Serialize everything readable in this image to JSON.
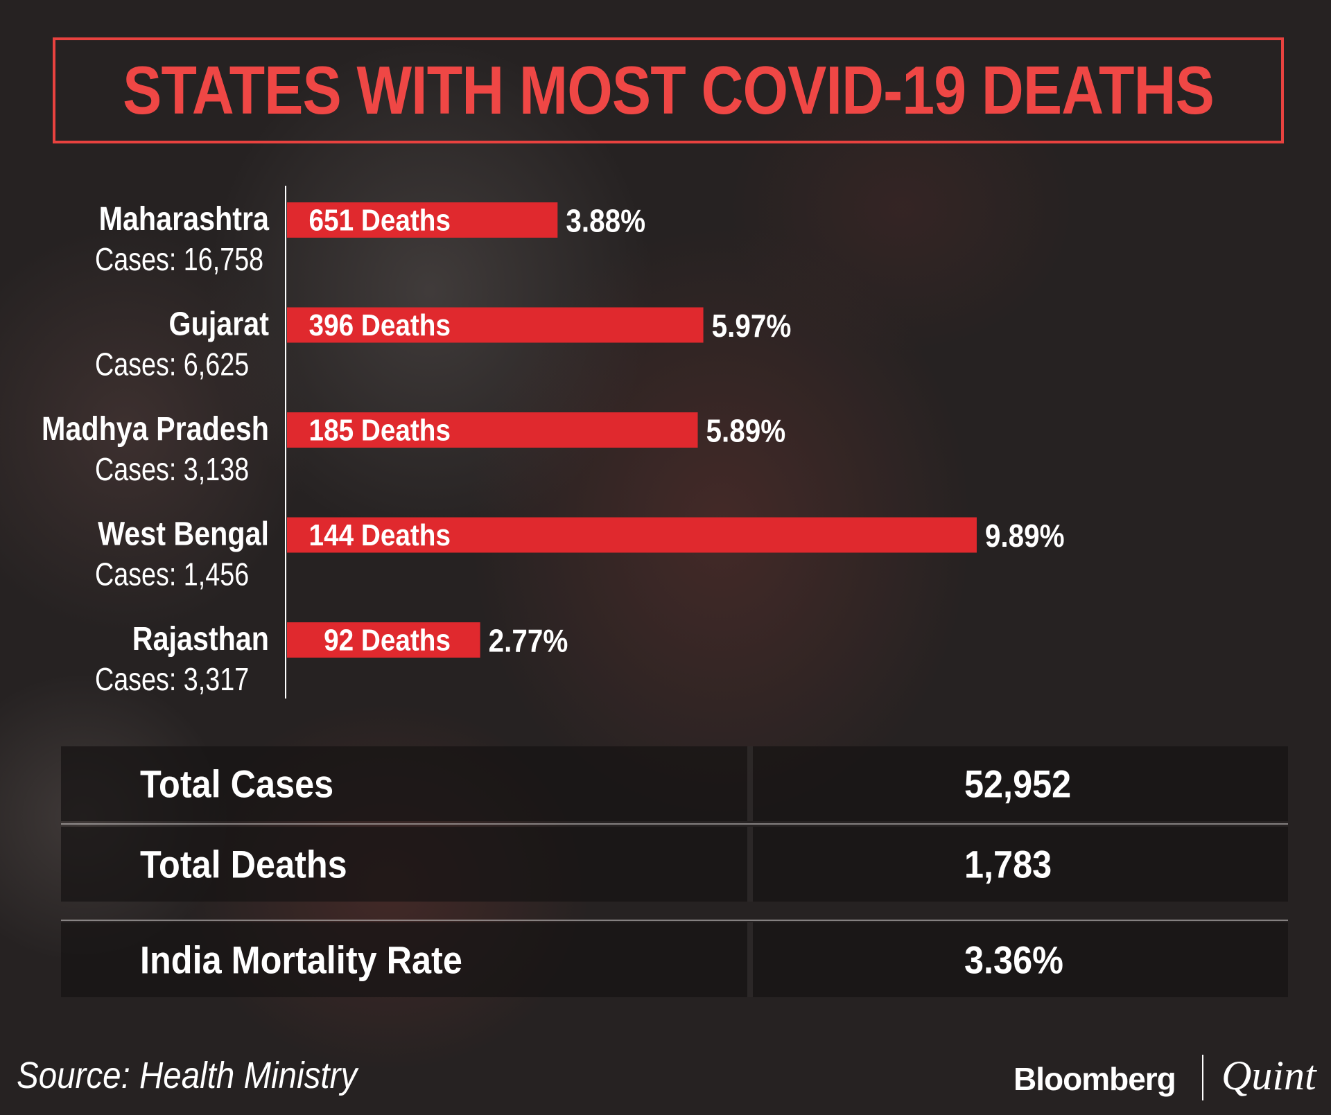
{
  "title": "STATES WITH MOST COVID-19 DEATHS",
  "chart_data": {
    "type": "bar",
    "orientation": "horizontal",
    "title": "STATES WITH MOST COVID-19 DEATHS",
    "categories": [
      "Maharashtra",
      "Gujarat",
      "Madhya Pradesh",
      "West Bengal",
      "Rajasthan"
    ],
    "case_labels": [
      "Cases: 16,758",
      "Cases: 6,625",
      "Cases: 3,138",
      "Cases: 1,456",
      "Cases: 3,317"
    ],
    "bar_labels": [
      "651 Deaths",
      "396 Deaths",
      "185 Deaths",
      "144 Deaths",
      "92 Deaths"
    ],
    "deaths": [
      651,
      396,
      185,
      144,
      92
    ],
    "cases": [
      16758,
      6625,
      3138,
      1456,
      3317
    ],
    "values": [
      3.88,
      5.97,
      5.89,
      9.89,
      2.77
    ],
    "value_labels": [
      "3.88%",
      "5.97%",
      "5.89%",
      "9.89%",
      "2.77%"
    ],
    "xlim": [
      0,
      10
    ],
    "grid": false,
    "colors": {
      "bar": "#e0292e",
      "axis": "#ffffff",
      "text": "#ffffff"
    }
  },
  "summary": {
    "rows": [
      {
        "label": "Total Cases",
        "value": "52,952"
      },
      {
        "label": "Total Deaths",
        "value": "1,783"
      },
      {
        "label": "India Mortality Rate",
        "value": "3.36%"
      }
    ]
  },
  "footer": {
    "source": "Source: Health Ministry",
    "logo_left": "Bloomberg",
    "logo_right": "Quint"
  },
  "colors": {
    "accent": "#ef4745",
    "background": "#262222"
  }
}
